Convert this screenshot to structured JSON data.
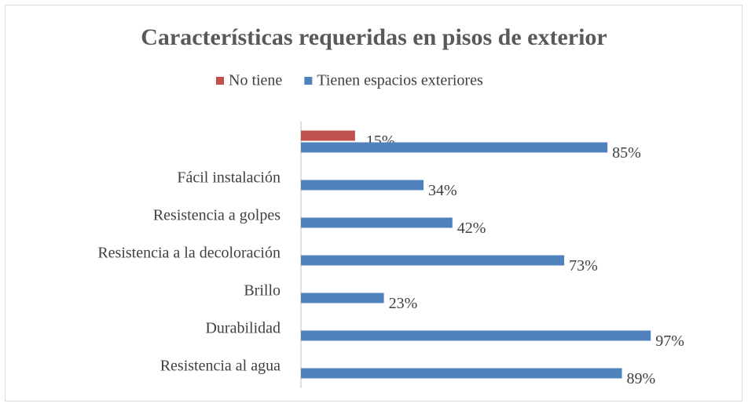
{
  "chart_data": {
    "type": "hbar",
    "title": "Características requeridas en pisos de exterior",
    "categories": [
      null,
      "Fácil instalación",
      "Resistencia a golpes",
      "Resistencia a la decoloración",
      "Brillo",
      "Durabilidad",
      "Resistencia al agua"
    ],
    "series": [
      {
        "name": "No tiene",
        "color": "#c0504d",
        "values": [
          15,
          null,
          null,
          null,
          null,
          null,
          null
        ],
        "value_labels": [
          "15%",
          null,
          null,
          null,
          null,
          null,
          null
        ]
      },
      {
        "name": "Tienen espacios exteriores",
        "color": "#4f81bd",
        "values": [
          85,
          34,
          42,
          73,
          23,
          97,
          89
        ],
        "value_labels": [
          "85%",
          "34%",
          "42%",
          "73%",
          "23%",
          "97%",
          "89%"
        ]
      }
    ],
    "xlim": [
      0,
      100
    ],
    "legend": "top"
  }
}
